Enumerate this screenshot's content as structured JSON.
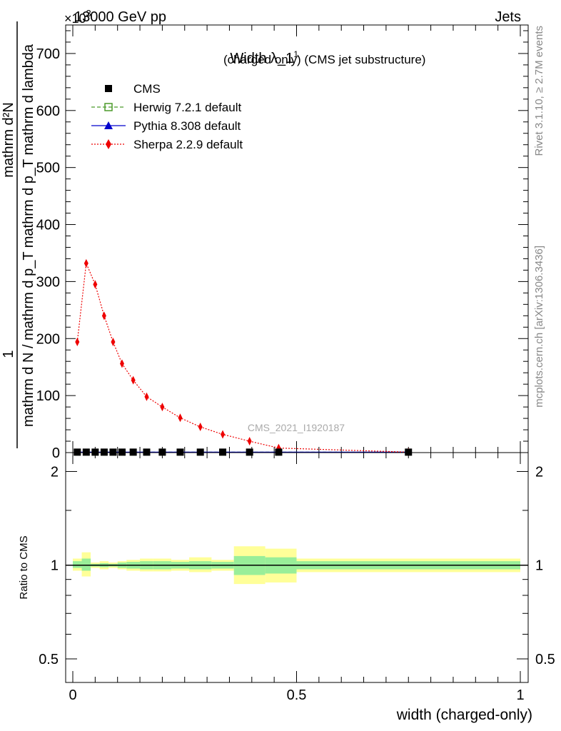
{
  "header": {
    "left": "13000 GeV pp",
    "right": "Jets",
    "exponent": "×10",
    "exponent_power": "3"
  },
  "side_labels": {
    "rivet": "Rivet 3.1.10, ≥ 2.7M events",
    "mcplots": "mcplots.cern.ch [arXiv:1306.3436]"
  },
  "watermark": "CMS_2021_I1920187",
  "chart_data": [
    {
      "type": "line",
      "title": "Width λ_1",
      "title_sup": "1",
      "subtitle": "(charged only) (CMS jet substructure)",
      "ylabel_numerator": "1",
      "ylabel_denominator": "mathrm d N / mathrm d p_T mathrm d p_T mathrm d lambda",
      "ylabel_right": "mathrm d²N",
      "xlim": [
        0,
        1
      ],
      "ylim": [
        0,
        750
      ],
      "yticks": [
        0,
        100,
        200,
        300,
        400,
        500,
        600,
        700
      ],
      "ytick_labels": [
        "0",
        "100",
        "200",
        "300",
        "400",
        "500",
        "600",
        "700"
      ],
      "legend_position": "top-left",
      "series": [
        {
          "name": "CMS",
          "color": "#000000",
          "marker": "square-filled",
          "line": "none",
          "x": [
            0.01,
            0.03,
            0.05,
            0.07,
            0.09,
            0.11,
            0.135,
            0.165,
            0.2,
            0.24,
            0.285,
            0.335,
            0.395,
            0.46,
            0.75
          ],
          "y": [
            0.8,
            0.8,
            0.8,
            0.8,
            0.8,
            0.8,
            0.8,
            0.8,
            0.8,
            0.8,
            0.8,
            0.8,
            0.8,
            0.8,
            0.8
          ]
        },
        {
          "name": "Herwig 7.2.1 default",
          "color": "#4c9a2a",
          "marker": "square-open",
          "line": "dashed",
          "x": [
            0.01,
            0.03,
            0.05,
            0.07,
            0.09,
            0.11,
            0.135,
            0.165,
            0.2,
            0.24,
            0.285,
            0.335,
            0.395,
            0.46,
            0.75
          ],
          "y": [
            0.8,
            0.8,
            0.8,
            0.8,
            0.8,
            0.8,
            0.8,
            0.8,
            0.8,
            0.8,
            0.8,
            0.8,
            0.8,
            0.8,
            0.8
          ]
        },
        {
          "name": "Pythia 8.308 default",
          "color": "#0000cc",
          "marker": "triangle",
          "line": "solid",
          "x": [
            0.01,
            0.03,
            0.05,
            0.07,
            0.09,
            0.11,
            0.135,
            0.165,
            0.2,
            0.24,
            0.285,
            0.335,
            0.395,
            0.46,
            0.75
          ],
          "y": [
            0.8,
            0.8,
            0.8,
            0.8,
            0.8,
            0.8,
            0.8,
            0.8,
            0.8,
            0.8,
            0.8,
            0.8,
            0.8,
            0.8,
            0.8
          ]
        },
        {
          "name": "Sherpa 2.2.9 default",
          "color": "#ee0000",
          "marker": "diamond",
          "line": "dotted",
          "x": [
            0.01,
            0.03,
            0.05,
            0.07,
            0.09,
            0.11,
            0.135,
            0.165,
            0.2,
            0.24,
            0.285,
            0.335,
            0.395,
            0.46,
            0.75
          ],
          "y": [
            194,
            332,
            295,
            240,
            194,
            156,
            127,
            98,
            80,
            61,
            45,
            32,
            20,
            8,
            0.8
          ]
        }
      ]
    },
    {
      "type": "area",
      "ylabel": "Ratio to CMS",
      "xlabel": "width (charged-only)",
      "xlim": [
        0,
        1
      ],
      "ylim": [
        0.42,
        2.3
      ],
      "log_y": true,
      "xticks": [
        0,
        0.5,
        1
      ],
      "xtick_labels": [
        "0",
        "0.5",
        "1"
      ],
      "yticks": [
        0.5,
        1,
        2
      ],
      "ytick_labels": [
        "0.5",
        "1",
        "2"
      ],
      "colors": {
        "inner": "#99ee99",
        "outer": "#ffff99"
      },
      "bins": [
        {
          "x0": 0.0,
          "x1": 0.02,
          "inner": [
            0.98,
            1.03
          ],
          "outer": [
            0.96,
            1.05
          ]
        },
        {
          "x0": 0.02,
          "x1": 0.04,
          "inner": [
            0.96,
            1.05
          ],
          "outer": [
            0.92,
            1.1
          ]
        },
        {
          "x0": 0.04,
          "x1": 0.06,
          "inner": [
            0.99,
            1.01
          ],
          "outer": [
            0.98,
            1.02
          ]
        },
        {
          "x0": 0.06,
          "x1": 0.08,
          "inner": [
            0.985,
            1.015
          ],
          "outer": [
            0.97,
            1.03
          ]
        },
        {
          "x0": 0.08,
          "x1": 0.1,
          "inner": [
            0.99,
            1.01
          ],
          "outer": [
            0.98,
            1.02
          ]
        },
        {
          "x0": 0.1,
          "x1": 0.12,
          "inner": [
            0.98,
            1.02
          ],
          "outer": [
            0.97,
            1.03
          ]
        },
        {
          "x0": 0.12,
          "x1": 0.15,
          "inner": [
            0.975,
            1.025
          ],
          "outer": [
            0.96,
            1.04
          ]
        },
        {
          "x0": 0.15,
          "x1": 0.18,
          "inner": [
            0.97,
            1.03
          ],
          "outer": [
            0.955,
            1.05
          ]
        },
        {
          "x0": 0.18,
          "x1": 0.22,
          "inner": [
            0.97,
            1.03
          ],
          "outer": [
            0.955,
            1.05
          ]
        },
        {
          "x0": 0.22,
          "x1": 0.26,
          "inner": [
            0.975,
            1.025
          ],
          "outer": [
            0.96,
            1.04
          ]
        },
        {
          "x0": 0.26,
          "x1": 0.31,
          "inner": [
            0.97,
            1.03
          ],
          "outer": [
            0.95,
            1.06
          ]
        },
        {
          "x0": 0.31,
          "x1": 0.36,
          "inner": [
            0.975,
            1.025
          ],
          "outer": [
            0.96,
            1.04
          ]
        },
        {
          "x0": 0.36,
          "x1": 0.43,
          "inner": [
            0.93,
            1.07
          ],
          "outer": [
            0.87,
            1.15
          ]
        },
        {
          "x0": 0.43,
          "x1": 0.5,
          "inner": [
            0.94,
            1.06
          ],
          "outer": [
            0.88,
            1.13
          ]
        },
        {
          "x0": 0.5,
          "x1": 1.0,
          "inner": [
            0.97,
            1.03
          ],
          "outer": [
            0.95,
            1.05
          ]
        }
      ],
      "reference_line": 1
    }
  ]
}
